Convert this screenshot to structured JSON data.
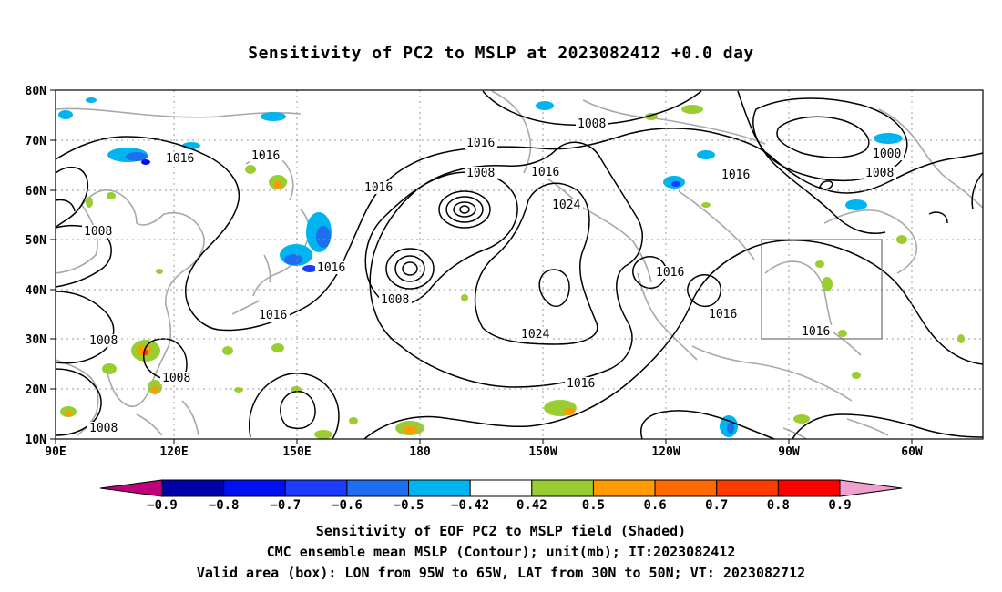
{
  "title": "Sensitivity of PC2 to MSLP at 2023082412 +0.0 day",
  "lat_labels": [
    "80N",
    "70N",
    "60N",
    "50N",
    "40N",
    "30N",
    "20N",
    "10N"
  ],
  "lon_labels": [
    "90E",
    "120E",
    "150E",
    "180",
    "150W",
    "120W",
    "90W",
    "60W"
  ],
  "contour_labels": [
    "1008",
    "1016",
    "1016",
    "1016",
    "1016",
    "1008",
    "1016",
    "1016",
    "1024",
    "1008",
    "1016",
    "1016",
    "1024",
    "1016",
    "1016",
    "1016",
    "1000",
    "1008",
    "1008",
    "1008",
    "1008",
    "1008"
  ],
  "colorbar": {
    "labels": [
      "−0.9",
      "−0.8",
      "−0.7",
      "−0.6",
      "−0.5",
      "−0.42",
      "0.42",
      "0.5",
      "0.6",
      "0.7",
      "0.8",
      "0.9"
    ],
    "colors": [
      "#0000a8",
      "#0010f0",
      "#1c3cff",
      "#1e6ef0",
      "#00b4f0",
      "#ffffff",
      "#9acd32",
      "#ff9b00",
      "#ff6a00",
      "#ff3c00",
      "#ff0000"
    ],
    "low_end_color": "#c0007a",
    "high_end_color": "#f0a0d0"
  },
  "valid_box": {
    "lon": [
      "95W",
      "65W"
    ],
    "lat": [
      "30N",
      "50N"
    ]
  },
  "captions": {
    "line1": "Sensitivity of EOF PC2 to MSLP field (Shaded)",
    "line2": "CMC ensemble mean MSLP (Contour); unit(mb); IT:2023082412",
    "line3": "Valid area (box): LON from 95W to 65W, LAT from 30N to 50N; VT: 2023082712"
  },
  "colors": {
    "coast": "#a8a8a8",
    "contour": "#000000",
    "grid": "#9a9a9a"
  }
}
